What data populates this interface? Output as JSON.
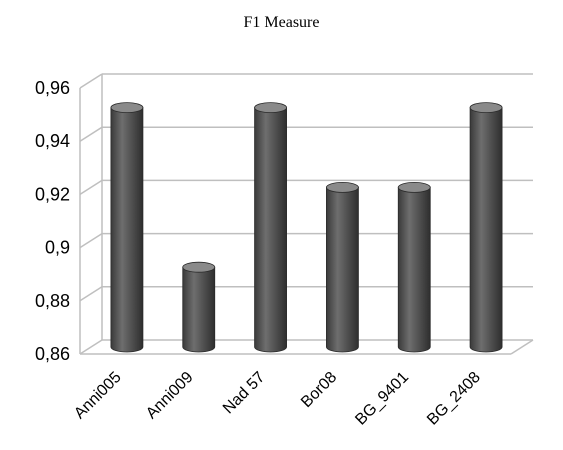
{
  "chart_data": {
    "type": "bar",
    "title": "F1 Measure",
    "categories": [
      "Anni005",
      "Anni009",
      "Nad 57",
      "Bor08",
      "BG_9401",
      "BG_2408"
    ],
    "values": [
      0.95,
      0.89,
      0.95,
      0.92,
      0.92,
      0.95
    ],
    "ylim": [
      0.86,
      0.96
    ],
    "yticks": [
      0.86,
      0.88,
      0.9,
      0.92,
      0.94,
      0.96
    ],
    "ytick_labels": [
      "0,86",
      "0,88",
      "0,9",
      "0,92",
      "0,94",
      "0,96"
    ],
    "grid": true,
    "style": "3d-cylinder",
    "colors": {
      "bar": "#5a5a5a",
      "bar_top": "#8a8a8a",
      "grid": "#bfbfbf"
    }
  }
}
